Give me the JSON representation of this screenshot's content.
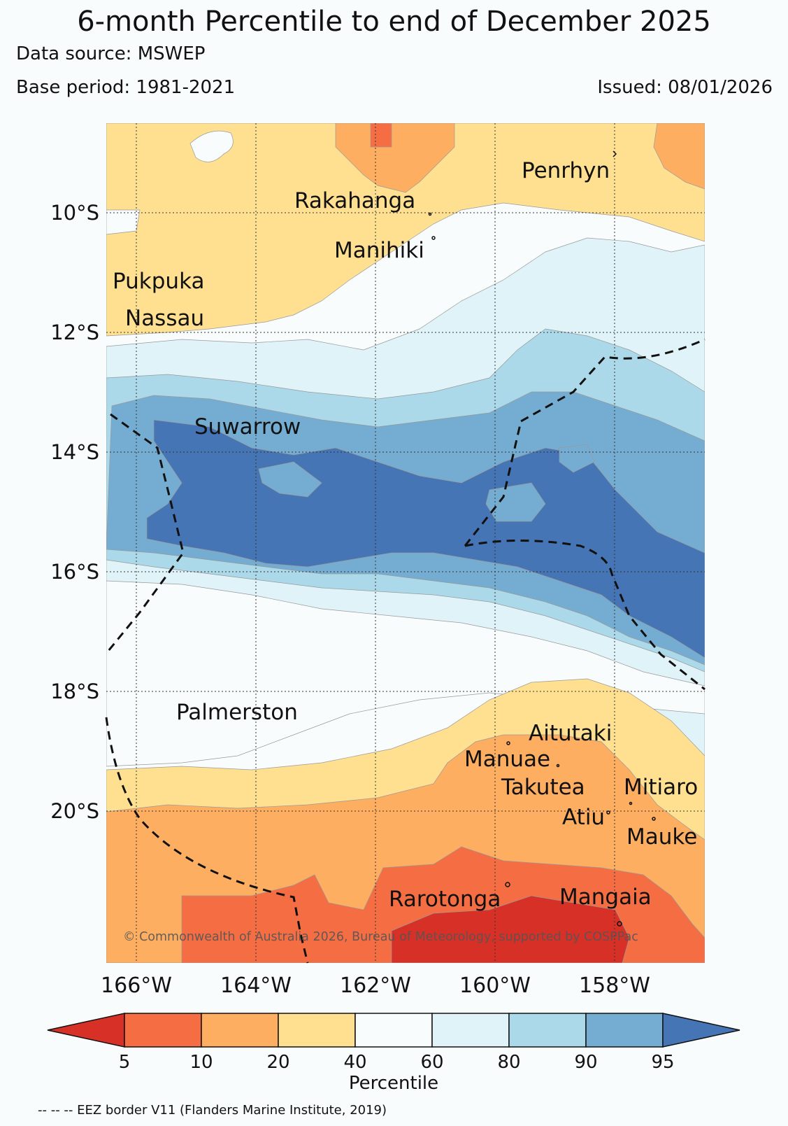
{
  "header": {
    "title": "6-month Percentile to end of December 2025",
    "source": "Data source: MSWEP",
    "base_period": "Base period: 1981-2021",
    "issued": "Issued: 08/01/2026"
  },
  "map": {
    "lat_labels": [
      "10°S",
      "12°S",
      "14°S",
      "16°S",
      "18°S",
      "20°S"
    ],
    "lon_labels": [
      "166°W",
      "164°W",
      "162°W",
      "160°W",
      "158°W"
    ],
    "places": [
      "Penrhyn",
      "Rakahanga",
      "Manihiki",
      "Pukpuka",
      "Nassau",
      "Suwarrow",
      "Palmerston",
      "Aitutaki",
      "Manuae",
      "Takutea",
      "Mitiaro",
      "Atiu",
      "Mauke",
      "Rarotonga",
      "Mangaia"
    ],
    "copyright": "© Commonwealth of Australia 2026, Bureau of Meteorology, supported by COSPPac"
  },
  "legend": {
    "ticks": [
      "5",
      "10",
      "20",
      "40",
      "60",
      "80",
      "90",
      "95"
    ],
    "label": "Percentile",
    "colors": [
      "#d73027",
      "#f46d43",
      "#fdae61",
      "#fee090",
      "#f8fcfd",
      "#e0f3f8",
      "#abd9e9",
      "#74add1",
      "#4575b4"
    ]
  },
  "footnote": "-- -- -- EEZ border V11 (Flanders Marine Institute, 2019)"
}
